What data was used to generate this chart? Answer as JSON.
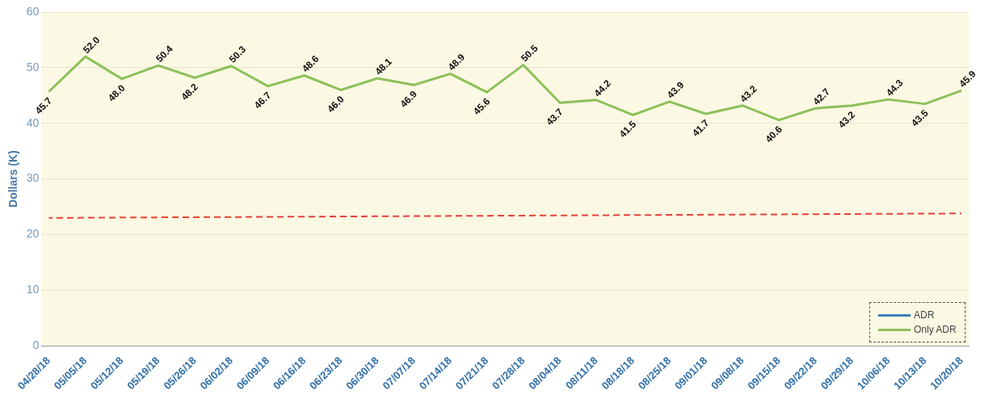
{
  "chart_data": {
    "type": "line",
    "ylabel": "Dollars (K)",
    "categories": [
      "04/28/18",
      "05/05/18",
      "05/12/18",
      "05/19/18",
      "05/26/18",
      "06/02/18",
      "06/09/18",
      "06/16/18",
      "06/23/18",
      "06/30/18",
      "07/07/18",
      "07/14/18",
      "07/21/18",
      "07/28/18",
      "08/04/18",
      "08/11/18",
      "08/18/18",
      "08/25/18",
      "09/01/18",
      "09/08/18",
      "09/15/18",
      "09/22/18",
      "09/29/18",
      "10/06/18",
      "10/13/18",
      "10/20/18"
    ],
    "series": [
      {
        "name": "ADR",
        "color": "#3a7fbf",
        "values": [
          null,
          null,
          null,
          null,
          null,
          null,
          null,
          null,
          null,
          null,
          null,
          null,
          null,
          null,
          null,
          null,
          null,
          null,
          null,
          null,
          null,
          null,
          null,
          null,
          null,
          null
        ]
      },
      {
        "name": "Only ADR",
        "color": "#8dc05a",
        "values": [
          45.7,
          52.0,
          48.0,
          50.4,
          48.2,
          50.3,
          46.7,
          48.6,
          46.0,
          48.1,
          46.9,
          48.9,
          45.6,
          50.5,
          43.7,
          44.2,
          41.5,
          43.9,
          41.7,
          43.2,
          40.6,
          42.7,
          43.2,
          44.3,
          43.5,
          45.9
        ],
        "value_labels": [
          "45.7",
          "52.0",
          "48.0",
          "50.4",
          "48.2",
          "50.3",
          "46.7",
          "48.6",
          "46.0",
          "48.1",
          "46.9",
          "48.9",
          "45.6",
          "50.5",
          "43.7",
          "44.2",
          "41.5",
          "43.9",
          "41.7",
          "43.2",
          "40.6",
          "42.7",
          "43.2",
          "44.3",
          "43.5",
          "45.9"
        ]
      },
      {
        "color": "#e8403a",
        "x": [
          "04/28/18",
          "10/20/18"
        ],
        "values": [
          23.0,
          23.8
        ],
        "line_style": "dashed"
      }
    ],
    "ylim": [
      0,
      60
    ],
    "yticks": [
      0,
      10,
      20,
      30,
      40,
      50,
      60
    ],
    "grid": "y",
    "legend": "bottom right",
    "marker": "none"
  }
}
